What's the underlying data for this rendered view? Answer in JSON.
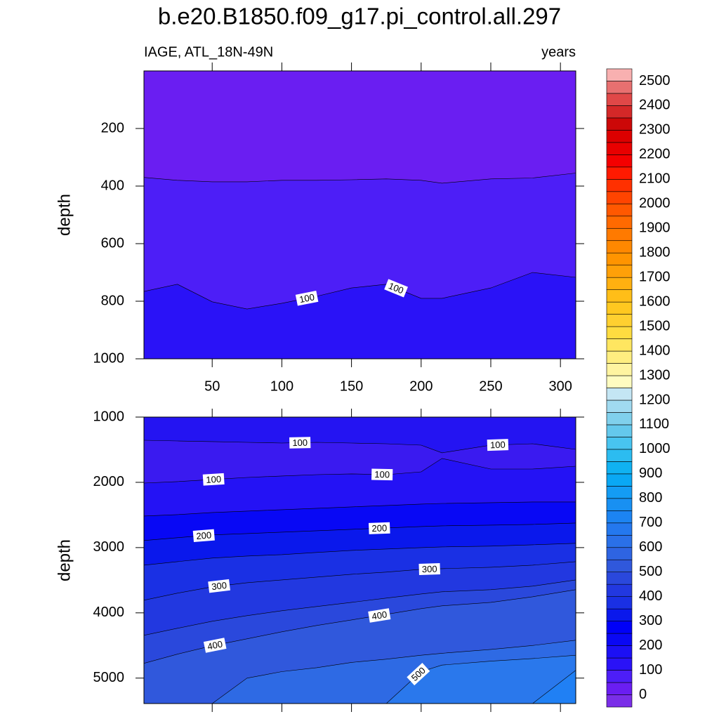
{
  "chart_data": [
    {
      "type": "contour",
      "title": "b.e20.B1850.f09_g17.pi_control.all.297",
      "subtitle_left": "IAGE, ATL_18N-49N",
      "subtitle_right": "years",
      "ylabel": "depth",
      "xlim": [
        1,
        311
      ],
      "xticks": [
        50,
        100,
        150,
        200,
        250,
        300
      ],
      "show_xtick_labels": true,
      "ylim": [
        0,
        1000
      ],
      "yreverse": true,
      "yticks": [
        200,
        400,
        600,
        800,
        1000
      ],
      "x": [
        1,
        25,
        50,
        75,
        100,
        125,
        150,
        175,
        200,
        215,
        250,
        280,
        311
      ],
      "top_color": "#6a1ef2",
      "series": [
        {
          "level": 50,
          "color": "#4d1ef7",
          "values": [
            370,
            380,
            385,
            385,
            380,
            380,
            378,
            375,
            380,
            390,
            375,
            372,
            355
          ],
          "label_x": []
        },
        {
          "level": 100,
          "color": "#2a12f7",
          "values": [
            766,
            741,
            802,
            827,
            807,
            783,
            754,
            741,
            790,
            790,
            754,
            700,
            717
          ],
          "label_x": [
            118,
            182
          ]
        }
      ]
    },
    {
      "type": "contour",
      "ylabel": "depth",
      "xlim": [
        1,
        311
      ],
      "xticks": [
        50,
        100,
        150,
        200,
        250,
        300
      ],
      "show_xtick_labels": false,
      "ylim": [
        1000,
        5390
      ],
      "yreverse": true,
      "yticks": [
        1000,
        2000,
        3000,
        4000,
        5000
      ],
      "x": [
        1,
        25,
        50,
        75,
        100,
        125,
        150,
        175,
        200,
        215,
        250,
        280,
        311
      ],
      "top_color": "#2414f2",
      "series": [
        {
          "level": 100,
          "color": "#3a1af0",
          "values": [
            1355,
            1366,
            1376,
            1387,
            1398,
            1387,
            1398,
            1409,
            1430,
            1548,
            1430,
            1409,
            1495
          ],
          "label_x": [
            113,
            255
          ]
        },
        {
          "level": 100,
          "color": "#2412f5",
          "values": [
            2011,
            1989,
            1957,
            1925,
            1903,
            1882,
            1871,
            1882,
            1839,
            1634,
            1796,
            1796,
            1753
          ],
          "label_x": [
            51,
            172
          ]
        },
        {
          "level": 150,
          "color": "#0808f5",
          "values": [
            2516,
            2495,
            2462,
            2441,
            2419,
            2398,
            2376,
            2355,
            2333,
            2323,
            2312,
            2301,
            2301
          ],
          "label_x": []
        },
        {
          "level": 200,
          "color": "#0a18ec",
          "values": [
            2892,
            2849,
            2806,
            2785,
            2763,
            2742,
            2720,
            2699,
            2677,
            2667,
            2656,
            2645,
            2624
          ],
          "label_x": [
            44,
            170
          ]
        },
        {
          "level": 250,
          "color": "#1a30e4",
          "values": [
            3269,
            3215,
            3161,
            3129,
            3108,
            3075,
            3043,
            3022,
            3000,
            2989,
            2978,
            2957,
            2935
          ],
          "label_x": []
        },
        {
          "level": 300,
          "color": "#2238e0",
          "values": [
            3806,
            3699,
            3602,
            3538,
            3495,
            3452,
            3409,
            3376,
            3333,
            3323,
            3301,
            3269,
            3215
          ],
          "label_x": [
            55,
            206
          ]
        },
        {
          "level": 350,
          "color": "#2a48dc",
          "values": [
            4344,
            4237,
            4129,
            4043,
            3968,
            3903,
            3839,
            3774,
            3710,
            3677,
            3645,
            3591,
            3495
          ],
          "label_x": []
        },
        {
          "level": 400,
          "color": "#3058dc",
          "values": [
            4774,
            4634,
            4505,
            4398,
            4290,
            4194,
            4108,
            4022,
            3935,
            3892,
            3839,
            3753,
            3645
          ],
          "label_x": [
            52,
            170
          ]
        },
        {
          "level": 450,
          "color": "#2e6ae4",
          "values": [
            null,
            null,
            5390,
            5000,
            4900,
            4840,
            4760,
            4710,
            4650,
            4620,
            4560,
            4500,
            4420
          ],
          "label_x": []
        },
        {
          "level": 500,
          "color": "#2a78ec",
          "values": [
            null,
            null,
            null,
            null,
            null,
            null,
            null,
            5390,
            4900,
            4800,
            4740,
            4700,
            4650
          ],
          "label_x": [
            198
          ]
        },
        {
          "level": 550,
          "color": "#2080f4",
          "values": [
            null,
            null,
            null,
            null,
            null,
            null,
            null,
            null,
            null,
            null,
            null,
            5390,
            4880
          ],
          "label_x": []
        }
      ]
    }
  ],
  "colorbar": {
    "levels": [
      0,
      100,
      200,
      300,
      400,
      500,
      600,
      700,
      800,
      900,
      1000,
      1100,
      1200,
      1300,
      1400,
      1500,
      1600,
      1700,
      1800,
      1900,
      2000,
      2100,
      2200,
      2300,
      2400,
      2500
    ],
    "step": 50,
    "colors": [
      "#7a2ee8",
      "#6a1ef2",
      "#4d1ef7",
      "#2a12f7",
      "#1c10f4",
      "#0a08f4",
      "#0000f8",
      "#0a18ec",
      "#1a30e4",
      "#2238e0",
      "#2a48dc",
      "#3058dc",
      "#2e64e2",
      "#2a70e8",
      "#2478ee",
      "#1c84f2",
      "#1890f2",
      "#149cf4",
      "#0aa8f4",
      "#10b2f2",
      "#2cbcf0",
      "#48c4f0",
      "#64c8ec",
      "#80d0ec",
      "#a0daf0",
      "#c4e6f4",
      "#fffcc0",
      "#fff4a0",
      "#ffee80",
      "#ffe660",
      "#ffdc40",
      "#ffd030",
      "#ffc820",
      "#ffbe18",
      "#ffb010",
      "#ffa008",
      "#ff9400",
      "#ff8800",
      "#ff7a00",
      "#ff6a00",
      "#ff5800",
      "#ff4400",
      "#ff3000",
      "#ff1a00",
      "#f40000",
      "#e80000",
      "#dc0000",
      "#cc0808",
      "#d42828",
      "#e04848",
      "#e87070",
      "#f8b0b0"
    ]
  }
}
